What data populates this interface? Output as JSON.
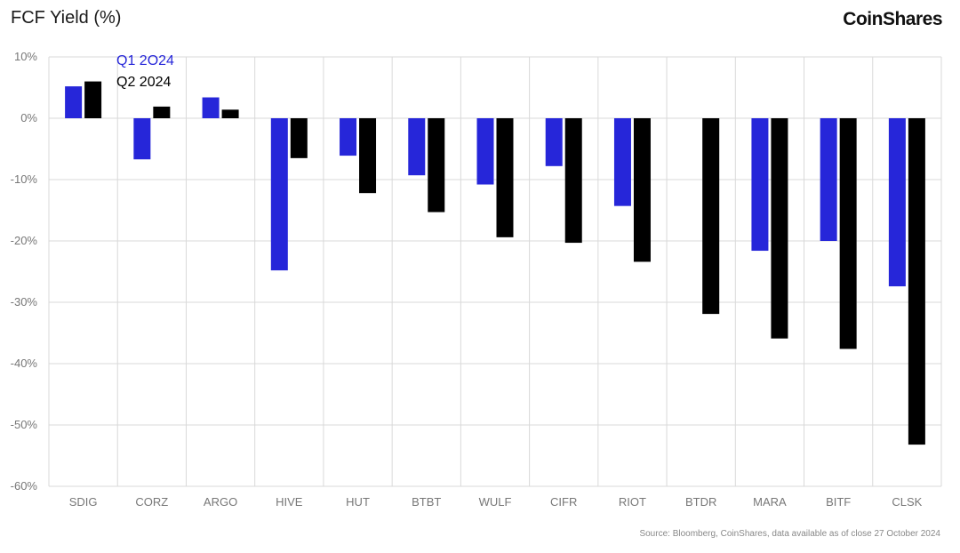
{
  "title": "FCF Yield (%)",
  "brand": "CoinShares",
  "source": "Source: Bloomberg, CoinShares, data available as of close 27 October 2024",
  "colors": {
    "q1": "#2626d9",
    "q2": "#000000",
    "grid": "#d9d9d9"
  },
  "chart_data": {
    "type": "bar",
    "title": "FCF Yield (%)",
    "xlabel": "",
    "ylabel": "",
    "ylim": [
      -60,
      10
    ],
    "yticks": [
      10,
      0,
      -10,
      -20,
      -30,
      -40,
      -50,
      -60
    ],
    "ytick_labels": [
      "10%",
      "0%",
      "-10%",
      "-20%",
      "-30%",
      "-40%",
      "-50%",
      "-60%"
    ],
    "grid": true,
    "legend_position": "top-left",
    "categories": [
      "SDIG",
      "CORZ",
      "ARGO",
      "HIVE",
      "HUT",
      "BTBT",
      "WULF",
      "CIFR",
      "RIOT",
      "BTDR",
      "MARA",
      "BITF",
      "CLSK"
    ],
    "series": [
      {
        "name": "Q1 2O24",
        "values": [
          5.2,
          -6.7,
          3.4,
          -24.8,
          -6.1,
          -9.3,
          -10.8,
          -7.8,
          -14.3,
          null,
          -21.6,
          -20.0,
          -27.4
        ]
      },
      {
        "name": "Q2 2024",
        "values": [
          6.0,
          1.9,
          1.4,
          -6.5,
          -12.2,
          -15.3,
          -19.4,
          -20.3,
          -23.4,
          -31.9,
          -35.9,
          -37.6,
          -53.2
        ]
      }
    ]
  }
}
